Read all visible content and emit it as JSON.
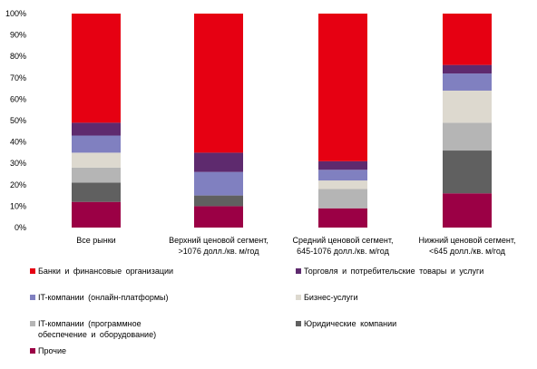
{
  "chart_data": {
    "type": "bar",
    "stacked": true,
    "percent": true,
    "categories": [
      "Все рынки",
      "Верхний ценовой сегмент,\n>1076 долл./кв. м/год",
      "Средний ценовой сегмент,\n645-1076 долл./кв. м/год",
      "Нижний ценовой сегмент,\n<645 долл./кв. м/год"
    ],
    "ylim": [
      0,
      100
    ],
    "yticks": [
      "0%",
      "10%",
      "20%",
      "30%",
      "40%",
      "50%",
      "60%",
      "70%",
      "80%",
      "90%",
      "100%"
    ],
    "grid": false,
    "legend_position": "bottom",
    "series": [
      {
        "name": "Прочие",
        "color": "#9b0045",
        "values": [
          12,
          10,
          9,
          16
        ]
      },
      {
        "name": "Юридические компании",
        "color": "#606060",
        "values": [
          9,
          5,
          0,
          20
        ]
      },
      {
        "name": "IT-компании (программное\nобеспечение и оборудование)",
        "color": "#b5b5b5",
        "values": [
          7,
          0,
          9,
          13
        ]
      },
      {
        "name": "Бизнес-услуги",
        "color": "#ddd9cf",
        "values": [
          7,
          0,
          4,
          15
        ]
      },
      {
        "name": "IT-компании (онлайн-платформы)",
        "color": "#8080c0",
        "values": [
          8,
          11,
          5,
          8
        ]
      },
      {
        "name": "Торговля и потребительские товары и услуги",
        "color": "#5e2a6e",
        "values": [
          6,
          9,
          4,
          4
        ]
      },
      {
        "name": "Банки и финансовые организации",
        "color": "#e60012",
        "values": [
          51,
          65,
          69,
          24
        ]
      }
    ],
    "legend_order": [
      "Банки и финансовые организации",
      "Торговля и потребительские товары и услуги",
      "IT-компании (онлайн-платформы)",
      "Бизнес-услуги",
      "IT-компании (программное\nобеспечение и оборудование)",
      "Юридические компании",
      "Прочие"
    ]
  }
}
